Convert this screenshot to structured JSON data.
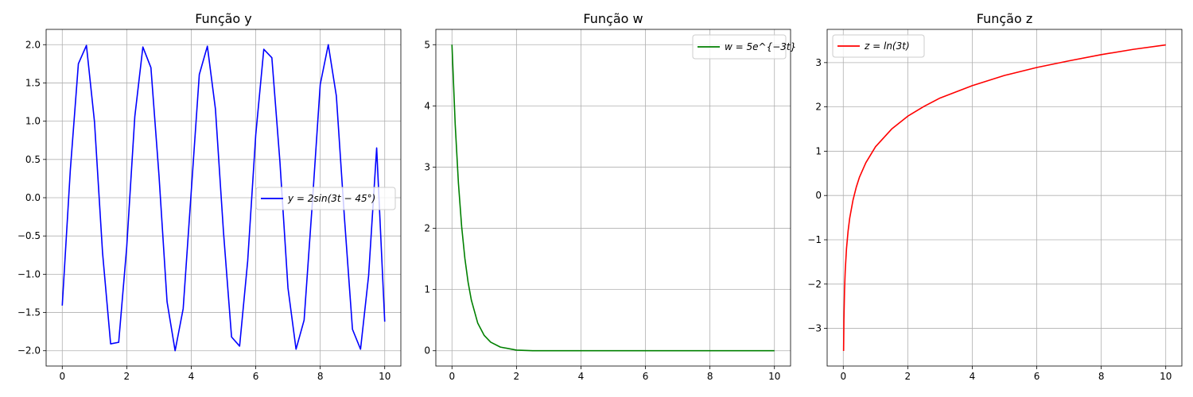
{
  "chart_data": [
    {
      "type": "line",
      "title": "Função y",
      "xlabel": "",
      "ylabel": "",
      "grid": true,
      "legend_position": "center-right",
      "xlim": [
        -0.5,
        10.5
      ],
      "ylim": [
        -2.2,
        2.2
      ],
      "xticks": [
        0,
        2,
        4,
        6,
        8,
        10
      ],
      "yticks": [
        -2.0,
        -1.5,
        -1.0,
        -0.5,
        0.0,
        0.5,
        1.0,
        1.5,
        2.0
      ],
      "xtick_labels": [
        "0",
        "2",
        "4",
        "6",
        "8",
        "10"
      ],
      "ytick_labels": [
        "−2.0",
        "−1.5",
        "−1.0",
        "−0.5",
        "0.0",
        "0.5",
        "1.0",
        "1.5",
        "2.0"
      ],
      "series": [
        {
          "name": "y = 2sin(3t − 45°)",
          "color": "#0000ff",
          "x": [
            0,
            0.25,
            0.5,
            0.75,
            1,
            1.25,
            1.5,
            1.75,
            2,
            2.25,
            2.5,
            2.75,
            3,
            3.25,
            3.5,
            3.75,
            4,
            4.25,
            4.5,
            4.75,
            5,
            5.25,
            5.5,
            5.75,
            6,
            6.25,
            6.5,
            6.75,
            7,
            7.25,
            7.5,
            7.75,
            8,
            8.25,
            8.5,
            8.75,
            9,
            9.25,
            9.5,
            9.75,
            10
          ],
          "y": [
            -1.41,
            0.36,
            1.75,
            1.99,
            0.99,
            -0.72,
            -1.91,
            -1.89,
            -0.64,
            1.06,
            1.97,
            1.7,
            0.29,
            -1.36,
            -2.0,
            -1.45,
            0.08,
            1.61,
            1.98,
            1.16,
            -0.45,
            -1.82,
            -1.94,
            -0.83,
            0.82,
            1.94,
            1.83,
            0.47,
            -1.18,
            -1.98,
            -1.6,
            -0.1,
            1.48,
            2.0,
            1.33,
            -0.26,
            -1.72,
            -1.98,
            -1.02,
            0.65,
            -1.62
          ]
        }
      ]
    },
    {
      "type": "line",
      "title": "Função w",
      "xlabel": "",
      "ylabel": "",
      "grid": true,
      "legend_position": "top-right",
      "xlim": [
        -0.5,
        10.5
      ],
      "ylim": [
        -0.25,
        5.25
      ],
      "xticks": [
        0,
        2,
        4,
        6,
        8,
        10
      ],
      "yticks": [
        0,
        1,
        2,
        3,
        4,
        5
      ],
      "xtick_labels": [
        "0",
        "2",
        "4",
        "6",
        "8",
        "10"
      ],
      "ytick_labels": [
        "0",
        "1",
        "2",
        "3",
        "4",
        "5"
      ],
      "series": [
        {
          "name": "w = 5e^{−3t}",
          "color": "#008000",
          "x": [
            0,
            0.1,
            0.2,
            0.3,
            0.4,
            0.5,
            0.6,
            0.8,
            1.0,
            1.2,
            1.5,
            2.0,
            2.5,
            3,
            4,
            5,
            6,
            7,
            8,
            9,
            10
          ],
          "y": [
            5.0,
            3.7,
            2.74,
            2.03,
            1.51,
            1.12,
            0.83,
            0.45,
            0.25,
            0.14,
            0.06,
            0.01,
            0.0,
            0.0,
            0.0,
            0.0,
            0.0,
            0.0,
            0.0,
            0.0,
            0.0
          ]
        }
      ]
    },
    {
      "type": "line",
      "title": "Função z",
      "xlabel": "",
      "ylabel": "",
      "grid": true,
      "legend_position": "top-left",
      "xlim": [
        -0.5,
        10.5
      ],
      "ylim": [
        -3.85,
        3.75
      ],
      "xticks": [
        0,
        2,
        4,
        6,
        8,
        10
      ],
      "yticks": [
        -3,
        -2,
        -1,
        0,
        1,
        2,
        3
      ],
      "xtick_labels": [
        "0",
        "2",
        "4",
        "6",
        "8",
        "10"
      ],
      "ytick_labels": [
        "−3",
        "−2",
        "−1",
        "0",
        "1",
        "2",
        "3"
      ],
      "series": [
        {
          "name": "z = ln(3t)",
          "color": "#ff0000",
          "x": [
            0.01,
            0.02,
            0.04,
            0.06,
            0.1,
            0.15,
            0.2,
            0.3,
            0.4,
            0.5,
            0.7,
            1.0,
            1.5,
            2,
            2.5,
            3,
            4,
            5,
            6,
            7,
            8,
            9,
            10
          ],
          "y": [
            -3.51,
            -2.81,
            -2.12,
            -1.71,
            -1.2,
            -0.8,
            -0.51,
            -0.11,
            0.18,
            0.41,
            0.74,
            1.1,
            1.5,
            1.79,
            2.01,
            2.2,
            2.48,
            2.71,
            2.89,
            3.04,
            3.18,
            3.3,
            3.4
          ]
        }
      ]
    }
  ]
}
